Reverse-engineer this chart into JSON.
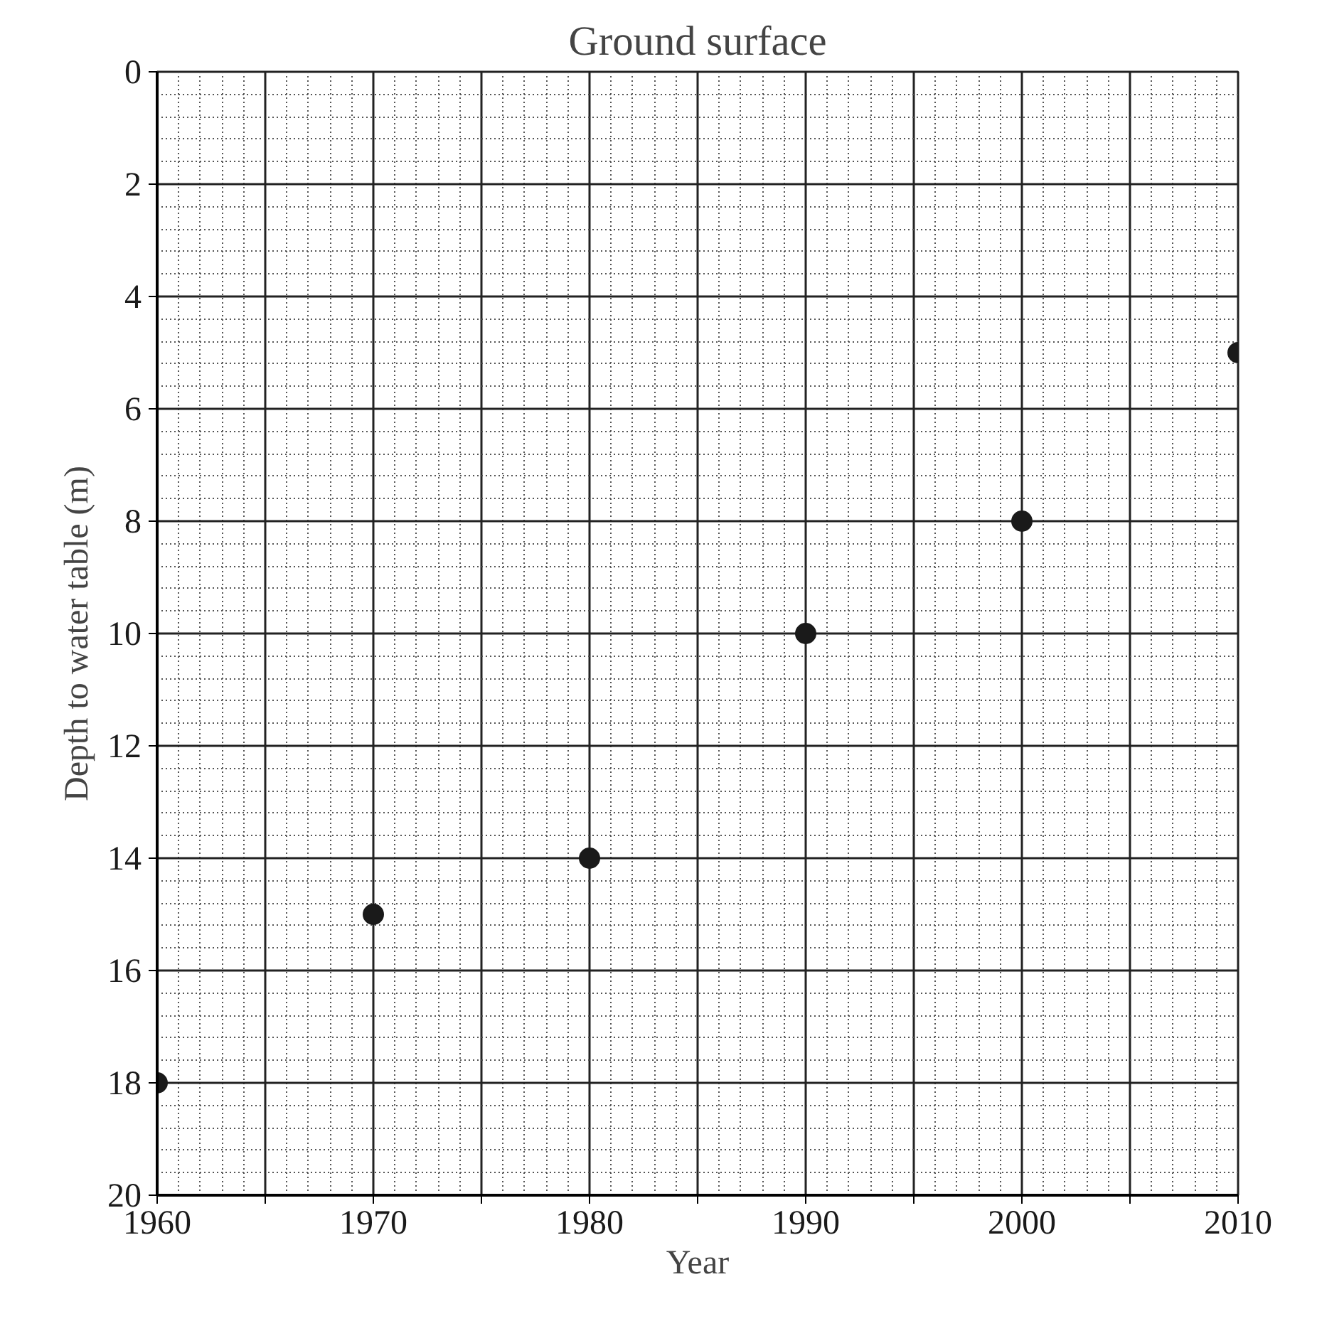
{
  "chart_data": {
    "type": "scatter",
    "title": "Ground surface",
    "xlabel": "Year",
    "ylabel": "Depth to water table (m)",
    "x": [
      1960,
      1970,
      1980,
      1990,
      2000,
      2010
    ],
    "series": [
      {
        "color": "#1a1a1a",
        "values": [
          18,
          15,
          14,
          10,
          8,
          5
        ]
      }
    ],
    "xlim": [
      1960,
      2010
    ],
    "ylim": [
      20,
      0
    ],
    "xticks": [
      1960,
      {
        "value": 1965,
        "label": null
      },
      1970,
      {
        "value": 1975,
        "label": null
      },
      1980,
      {
        "value": 1985,
        "label": null
      },
      1990,
      {
        "value": 1995,
        "label": null
      },
      2000,
      {
        "value": 2005,
        "label": null
      },
      2010
    ],
    "yticks": [
      0,
      2,
      4,
      6,
      8,
      10,
      12,
      14,
      16,
      18,
      20
    ],
    "grid": true,
    "marker": "circle"
  }
}
